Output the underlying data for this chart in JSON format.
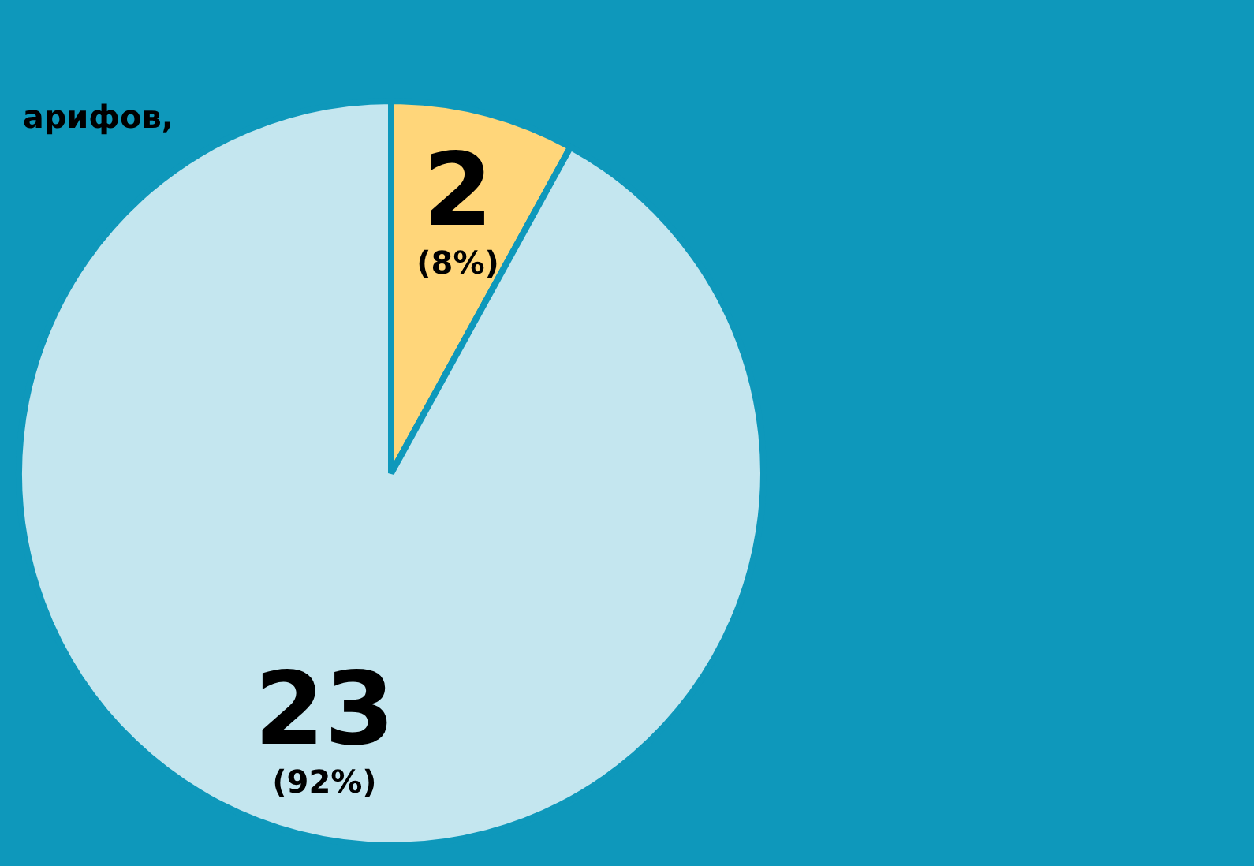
{
  "chart_data": {
    "type": "pie",
    "categories": [
      null,
      null
    ],
    "values": [
      8,
      92
    ],
    "colors": [
      "#ffd67a",
      "#c4e6ef"
    ],
    "value_labels": [
      "2\n(8%)",
      "23\n(92%)"
    ],
    "annotations": [
      "арифов,"
    ]
  }
}
